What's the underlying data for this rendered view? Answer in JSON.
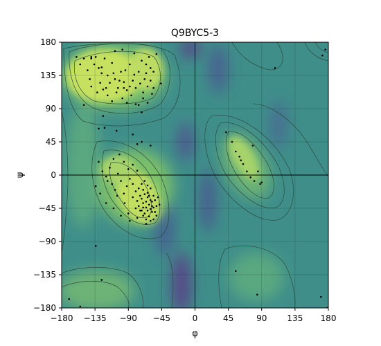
{
  "chart_data": {
    "type": "scatter",
    "subtype": "ramachandran",
    "title": "Q9BYC5-3",
    "xlabel": "φ",
    "ylabel": "ψ",
    "xlim": [
      -180,
      180
    ],
    "ylim": [
      -180,
      180
    ],
    "xticks": [
      -180,
      -135,
      -90,
      -45,
      0,
      45,
      90,
      135,
      180
    ],
    "yticks": [
      -180,
      -135,
      -90,
      -45,
      0,
      45,
      90,
      135,
      180
    ],
    "grid": true,
    "background": "density heatmap with contour lines (viridis colormap)",
    "colors": {
      "low": "#6a2d7d",
      "mid": "#3b8f8c",
      "high": "#d9e65a",
      "points": "#000000",
      "contour": "#2a4a3a"
    },
    "points": [
      [
        -160,
        160
      ],
      [
        -155,
        150
      ],
      [
        -150,
        158
      ],
      [
        -145,
        142
      ],
      [
        -140,
        160
      ],
      [
        -136,
        150
      ],
      [
        -130,
        145
      ],
      [
        -126,
        138
      ],
      [
        -122,
        158
      ],
      [
        -118,
        135
      ],
      [
        -115,
        125
      ],
      [
        -112,
        152
      ],
      [
        -108,
        130
      ],
      [
        -104,
        118
      ],
      [
        -100,
        140
      ],
      [
        -96,
        126
      ],
      [
        -92,
        115
      ],
      [
        -88,
        150
      ],
      [
        -84,
        128
      ],
      [
        -80,
        118
      ],
      [
        -76,
        140
      ],
      [
        -72,
        155
      ],
      [
        -68,
        130
      ],
      [
        -64,
        120
      ],
      [
        -60,
        145
      ],
      [
        -58,
        110
      ],
      [
        -140,
        120
      ],
      [
        -132,
        112
      ],
      [
        -128,
        125
      ],
      [
        -124,
        116
      ],
      [
        -118,
        108
      ],
      [
        -112,
        100
      ],
      [
        -106,
        112
      ],
      [
        -98,
        104
      ],
      [
        -92,
        98
      ],
      [
        -86,
        108
      ],
      [
        -80,
        96
      ],
      [
        -74,
        124
      ],
      [
        -70,
        112
      ],
      [
        -66,
        150
      ],
      [
        -62,
        160
      ],
      [
        -56,
        140
      ],
      [
        -150,
        95
      ],
      [
        -108,
        168
      ],
      [
        -98,
        170
      ],
      [
        -82,
        165
      ],
      [
        -76,
        95
      ],
      [
        -72,
        85
      ],
      [
        -124,
        80
      ],
      [
        -122,
        64
      ],
      [
        -130,
        63
      ],
      [
        -106,
        60
      ],
      [
        -84,
        55
      ],
      [
        -78,
        42
      ],
      [
        -72,
        45
      ],
      [
        -60,
        40
      ],
      [
        -52,
        164
      ],
      [
        -46,
        124
      ],
      [
        -140,
        158
      ],
      [
        -134,
        160
      ],
      [
        -126,
        146
      ],
      [
        -110,
        138
      ],
      [
        -102,
        128
      ],
      [
        -94,
        142
      ],
      [
        -88,
        120
      ],
      [
        -82,
        136
      ],
      [
        -66,
        138
      ],
      [
        -60,
        128
      ],
      [
        -56,
        118
      ],
      [
        -142,
        130
      ],
      [
        -120,
        118
      ],
      [
        -96,
        118
      ],
      [
        -70,
        104
      ],
      [
        -64,
        98
      ],
      [
        -130,
        18
      ],
      [
        -125,
        5
      ],
      [
        -120,
        -2
      ],
      [
        -115,
        10
      ],
      [
        -112,
        -12
      ],
      [
        -108,
        -20
      ],
      [
        -104,
        2
      ],
      [
        -100,
        -8
      ],
      [
        -96,
        -25
      ],
      [
        -92,
        -15
      ],
      [
        -88,
        -5
      ],
      [
        -84,
        -30
      ],
      [
        -80,
        -22
      ],
      [
        -78,
        -35
      ],
      [
        -76,
        -42
      ],
      [
        -74,
        -28
      ],
      [
        -72,
        -48
      ],
      [
        -70,
        -38
      ],
      [
        -68,
        -52
      ],
      [
        -66,
        -44
      ],
      [
        -64,
        -30
      ],
      [
        -62,
        -56
      ],
      [
        -60,
        -46
      ],
      [
        -58,
        -36
      ],
      [
        -56,
        -60
      ],
      [
        -54,
        -50
      ],
      [
        -52,
        -42
      ],
      [
        -76,
        -18
      ],
      [
        -72,
        -12
      ],
      [
        -68,
        -8
      ],
      [
        -64,
        -24
      ],
      [
        -60,
        -18
      ],
      [
        -56,
        -28
      ],
      [
        -70,
        -55
      ],
      [
        -66,
        -60
      ],
      [
        -62,
        -40
      ],
      [
        -58,
        -50
      ],
      [
        -54,
        -34
      ],
      [
        -72,
        -32
      ],
      [
        -68,
        -26
      ],
      [
        -64,
        -48
      ],
      [
        -60,
        -34
      ],
      [
        -56,
        -44
      ],
      [
        -74,
        -48
      ],
      [
        -70,
        -44
      ],
      [
        -66,
        -36
      ],
      [
        -62,
        -28
      ],
      [
        -58,
        -42
      ],
      [
        -80,
        -45
      ],
      [
        -84,
        -12
      ],
      [
        -90,
        -52
      ],
      [
        -95,
        -38
      ],
      [
        -100,
        -55
      ],
      [
        -105,
        -28
      ],
      [
        -110,
        -45
      ],
      [
        -118,
        -8
      ],
      [
        -88,
        -62
      ],
      [
        -78,
        -58
      ],
      [
        -66,
        -66
      ],
      [
        -60,
        -62
      ],
      [
        -134,
        -15
      ],
      [
        -128,
        -25
      ],
      [
        -120,
        -38
      ],
      [
        -90,
        8
      ],
      [
        -84,
        14
      ],
      [
        -78,
        6
      ],
      [
        -96,
        18
      ],
      [
        -102,
        28
      ],
      [
        -110,
        22
      ],
      [
        -52,
        -55
      ],
      [
        -48,
        -40
      ],
      [
        -50,
        -30
      ],
      [
        -64,
        -14
      ],
      [
        -70,
        -20
      ],
      [
        42,
        58
      ],
      [
        50,
        45
      ],
      [
        55,
        32
      ],
      [
        60,
        25
      ],
      [
        65,
        15
      ],
      [
        70,
        5
      ],
      [
        75,
        -3
      ],
      [
        80,
        -8
      ],
      [
        88,
        -12
      ],
      [
        90,
        -10
      ],
      [
        62,
        20
      ],
      [
        78,
        40
      ],
      [
        85,
        5
      ],
      [
        108,
        145
      ],
      [
        172,
        162
      ],
      [
        176,
        170
      ],
      [
        178,
        -180
      ],
      [
        170,
        -165
      ],
      [
        -170,
        -168
      ],
      [
        -155,
        -178
      ],
      [
        -126,
        -142
      ],
      [
        -134,
        -96
      ],
      [
        55,
        -130
      ],
      [
        84,
        -162
      ]
    ]
  }
}
